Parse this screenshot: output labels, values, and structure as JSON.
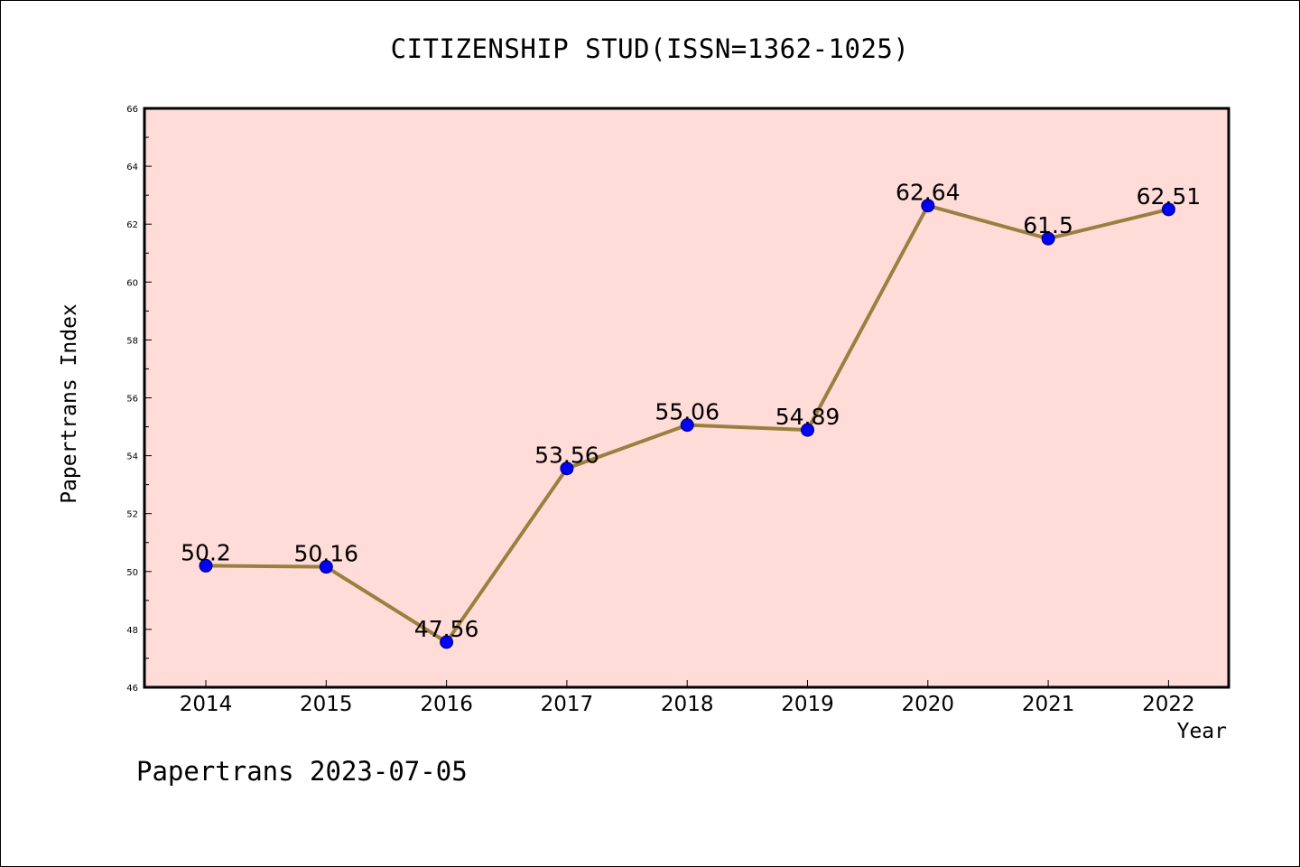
{
  "colors": {
    "plot_background": "#ffdcd8",
    "line": "#9a8040",
    "marker": "#0000ff",
    "axis": "#000000"
  },
  "footer_text": "Papertrans 2023-07-05",
  "chart_data": {
    "type": "line",
    "title": "CITIZENSHIP STUD(ISSN=1362-1025)",
    "xlabel": "Year",
    "ylabel": "Papertrans Index",
    "ylim": [
      46,
      66
    ],
    "yticks": [
      46,
      48,
      50,
      52,
      54,
      56,
      58,
      60,
      62,
      64,
      66
    ],
    "categories": [
      "2014",
      "2015",
      "2016",
      "2017",
      "2018",
      "2019",
      "2020",
      "2021",
      "2022"
    ],
    "values": [
      50.2,
      50.16,
      47.56,
      53.56,
      55.06,
      54.89,
      62.64,
      61.5,
      62.51
    ],
    "data_labels": [
      "50.2",
      "50.16",
      "47.56",
      "53.56",
      "55.06",
      "54.89",
      "62.64",
      "61.5",
      "62.51"
    ],
    "grid": false,
    "legend": "none"
  }
}
